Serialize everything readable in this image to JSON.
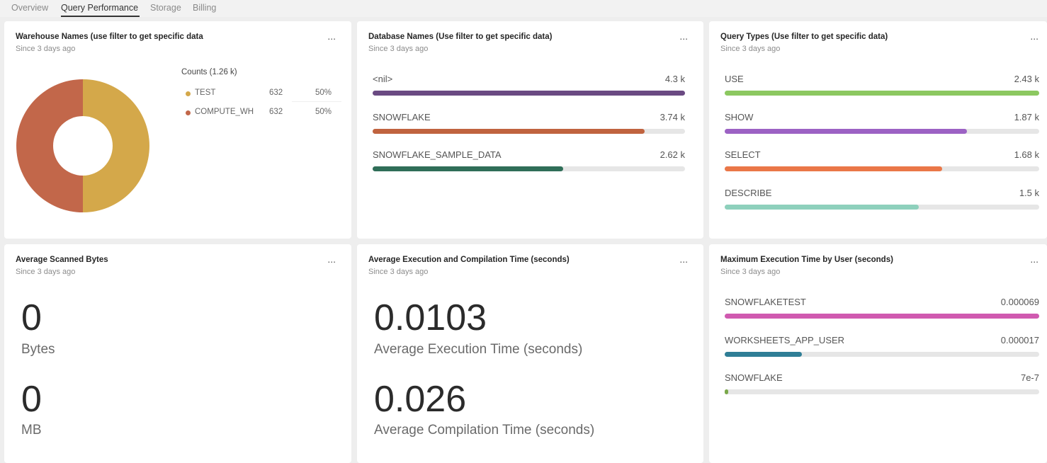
{
  "tabs": [
    {
      "label": "Overview",
      "active": false
    },
    {
      "label": "Query Performance",
      "active": true
    },
    {
      "label": "Storage",
      "active": false
    },
    {
      "label": "Billing",
      "active": false
    }
  ],
  "cards": {
    "warehouse": {
      "title": "Warehouse Names (use filter to get specific data",
      "subtitle": "Since 3 days ago",
      "legend_title": "Counts (1.26 k)",
      "items": [
        {
          "name": "TEST",
          "count": "632",
          "pct": "50%",
          "value": 632,
          "color": "#d4a84a"
        },
        {
          "name": "COMPUTE_WH",
          "count": "632",
          "pct": "50%",
          "value": 632,
          "color": "#c2674a"
        }
      ]
    },
    "database": {
      "title": "Database Names (Use filter to get specific data)",
      "subtitle": "Since 3 days ago",
      "max": 4.3,
      "items": [
        {
          "label": "<nil>",
          "value_text": "4.3 k",
          "value": 4.3,
          "color": "#6a4a82"
        },
        {
          "label": "SNOWFLAKE",
          "value_text": "3.74 k",
          "value": 3.74,
          "color": "#c0633f"
        },
        {
          "label": "SNOWFLAKE_SAMPLE_DATA",
          "value_text": "2.62 k",
          "value": 2.62,
          "color": "#2f6e58"
        }
      ]
    },
    "query_types": {
      "title": "Query Types (Use filter to get specific data)",
      "subtitle": "Since 3 days ago",
      "max": 2.43,
      "items": [
        {
          "label": "USE",
          "value_text": "2.43 k",
          "value": 2.43,
          "color": "#8cc860"
        },
        {
          "label": "SHOW",
          "value_text": "1.87 k",
          "value": 1.87,
          "color": "#9c62c4"
        },
        {
          "label": "SELECT",
          "value_text": "1.68 k",
          "value": 1.68,
          "color": "#ea7748"
        },
        {
          "label": "DESCRIBE",
          "value_text": "1.5 k",
          "value": 1.5,
          "color": "#8ed0bc"
        }
      ]
    },
    "scanned": {
      "title": "Average Scanned Bytes",
      "subtitle": "Since 3 days ago",
      "metrics": [
        {
          "value": "0",
          "label": "Bytes"
        },
        {
          "value": "0",
          "label": "MB"
        }
      ]
    },
    "exec": {
      "title": "Average Execution and Compilation Time (seconds)",
      "subtitle": "Since 3 days ago",
      "metrics": [
        {
          "value": "0.0103",
          "label": "Average Execution Time (seconds)"
        },
        {
          "value": "0.026",
          "label": "Average Compilation Time (seconds)"
        }
      ]
    },
    "max_exec": {
      "title": "Maximum Execution Time by User (seconds)",
      "subtitle": "Since 3 days ago",
      "max": 6.9e-05,
      "items": [
        {
          "label": "SNOWFLAKETEST",
          "value_text": "0.000069",
          "value": 6.9e-05,
          "color": "#d05ab0"
        },
        {
          "label": "WORKSHEETS_APP_USER",
          "value_text": "0.000017",
          "value": 1.7e-05,
          "color": "#2f7e96"
        },
        {
          "label": "SNOWFLAKE",
          "value_text": "7e-7",
          "value": 7e-07,
          "color": "#7aa84a"
        }
      ]
    }
  },
  "menu_glyph": "..."
}
